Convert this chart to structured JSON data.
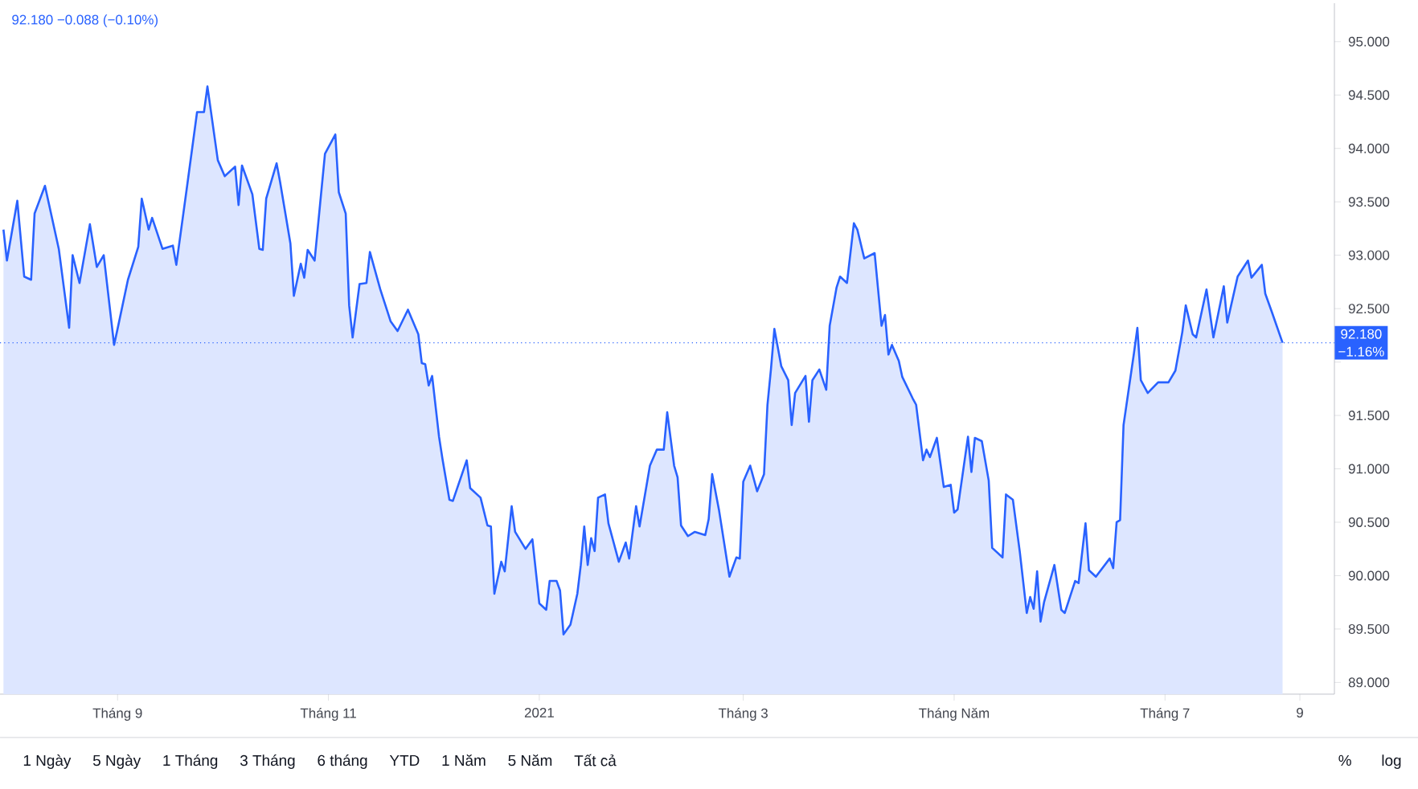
{
  "chart_data": {
    "type": "area",
    "x": [
      "2020-07-30",
      "2020-07-31",
      "2020-08-03",
      "2020-08-05",
      "2020-08-07",
      "2020-08-08",
      "2020-08-11",
      "2020-08-15",
      "2020-08-18",
      "2020-08-19",
      "2020-08-21",
      "2020-08-24",
      "2020-08-26",
      "2020-08-28",
      "2020-08-31",
      "2020-09-01",
      "2020-09-04",
      "2020-09-07",
      "2020-09-08",
      "2020-09-10",
      "2020-09-11",
      "2020-09-14",
      "2020-09-17",
      "2020-09-18",
      "2020-09-21",
      "2020-09-24",
      "2020-09-26",
      "2020-09-27",
      "2020-09-30",
      "2020-10-02",
      "2020-10-05",
      "2020-10-06",
      "2020-10-07",
      "2020-10-10",
      "2020-10-12",
      "2020-10-13",
      "2020-10-14",
      "2020-10-17",
      "2020-10-18",
      "2020-10-21",
      "2020-10-22",
      "2020-10-24",
      "2020-10-25",
      "2020-10-26",
      "2020-10-28",
      "2020-10-31",
      "2020-11-03",
      "2020-11-04",
      "2020-11-06",
      "2020-11-07",
      "2020-11-08",
      "2020-11-10",
      "2020-11-12",
      "2020-11-13",
      "2020-11-16",
      "2020-11-19",
      "2020-11-21",
      "2020-11-24",
      "2020-11-27",
      "2020-11-28",
      "2020-11-29",
      "2020-11-30",
      "2020-12-01",
      "2020-12-03",
      "2020-12-04",
      "2020-12-06",
      "2020-12-07",
      "2020-12-11",
      "2020-12-12",
      "2020-12-15",
      "2020-12-17",
      "2020-12-18",
      "2020-12-19",
      "2020-12-21",
      "2020-12-22",
      "2020-12-24",
      "2020-12-25",
      "2020-12-28",
      "2020-12-30",
      "2021-01-01",
      "2021-01-03",
      "2021-01-04",
      "2021-01-06",
      "2021-01-07",
      "2021-01-08",
      "2021-01-10",
      "2021-01-12",
      "2021-01-13",
      "2021-01-14",
      "2021-01-15",
      "2021-01-16",
      "2021-01-17",
      "2021-01-18",
      "2021-01-20",
      "2021-01-21",
      "2021-01-24",
      "2021-01-26",
      "2021-01-27",
      "2021-01-29",
      "2021-01-30",
      "2021-02-02",
      "2021-02-04",
      "2021-02-06",
      "2021-02-07",
      "2021-02-09",
      "2021-02-10",
      "2021-02-11",
      "2021-02-13",
      "2021-02-15",
      "2021-02-18",
      "2021-02-19",
      "2021-02-20",
      "2021-02-22",
      "2021-02-25",
      "2021-02-27",
      "2021-02-28",
      "2021-03-01",
      "2021-03-03",
      "2021-03-05",
      "2021-03-07",
      "2021-03-08",
      "2021-03-09",
      "2021-03-10",
      "2021-03-12",
      "2021-03-14",
      "2021-03-15",
      "2021-03-16",
      "2021-03-19",
      "2021-03-20",
      "2021-03-21",
      "2021-03-23",
      "2021-03-25",
      "2021-03-26",
      "2021-03-28",
      "2021-03-29",
      "2021-03-31",
      "2021-04-02",
      "2021-04-03",
      "2021-04-05",
      "2021-04-08",
      "2021-04-10",
      "2021-04-11",
      "2021-04-12",
      "2021-04-13",
      "2021-04-15",
      "2021-04-16",
      "2021-04-19",
      "2021-04-20",
      "2021-04-22",
      "2021-04-23",
      "2021-04-24",
      "2021-04-26",
      "2021-04-28",
      "2021-04-30",
      "2021-05-01",
      "2021-05-02",
      "2021-05-05",
      "2021-05-06",
      "2021-05-07",
      "2021-05-09",
      "2021-05-11",
      "2021-05-12",
      "2021-05-15",
      "2021-05-16",
      "2021-05-18",
      "2021-05-20",
      "2021-05-22",
      "2021-05-23",
      "2021-05-24",
      "2021-05-25",
      "2021-05-26",
      "2021-05-27",
      "2021-05-30",
      "2021-06-01",
      "2021-06-02",
      "2021-06-05",
      "2021-06-06",
      "2021-06-08",
      "2021-06-09",
      "2021-06-11",
      "2021-06-15",
      "2021-06-16",
      "2021-06-17",
      "2021-06-18",
      "2021-06-19",
      "2021-06-22",
      "2021-06-23",
      "2021-06-24",
      "2021-06-26",
      "2021-06-29",
      "2021-07-02",
      "2021-07-04",
      "2021-07-06",
      "2021-07-07",
      "2021-07-09",
      "2021-07-10",
      "2021-07-13",
      "2021-07-15",
      "2021-07-18",
      "2021-07-19",
      "2021-07-22",
      "2021-07-25",
      "2021-07-26",
      "2021-07-29",
      "2021-07-30",
      "2021-08-01",
      "2021-08-04"
    ],
    "series": [
      {
        "color": "#2962ff",
        "values": [
          93.24,
          92.95,
          93.51,
          92.8,
          92.77,
          93.39,
          93.65,
          93.06,
          92.32,
          93.0,
          92.74,
          93.29,
          92.89,
          93.0,
          92.16,
          92.31,
          92.77,
          93.08,
          93.53,
          93.24,
          93.35,
          93.06,
          93.09,
          92.91,
          93.62,
          94.34,
          94.34,
          94.58,
          93.89,
          93.74,
          93.83,
          93.47,
          93.84,
          93.57,
          93.06,
          93.05,
          93.53,
          93.86,
          93.69,
          93.11,
          92.62,
          92.92,
          92.79,
          93.05,
          92.95,
          93.95,
          94.13,
          93.59,
          93.39,
          92.53,
          92.23,
          92.73,
          92.74,
          93.03,
          92.68,
          92.38,
          92.29,
          92.49,
          92.26,
          91.99,
          91.98,
          91.78,
          91.87,
          91.3,
          91.09,
          90.71,
          90.7,
          91.08,
          90.82,
          90.73,
          90.47,
          90.46,
          89.83,
          90.13,
          90.04,
          90.65,
          90.41,
          90.25,
          90.34,
          89.74,
          89.68,
          89.95,
          89.95,
          89.86,
          89.45,
          89.54,
          89.83,
          90.1,
          90.46,
          90.1,
          90.35,
          90.23,
          90.73,
          90.76,
          90.49,
          90.13,
          90.31,
          90.16,
          90.65,
          90.46,
          91.03,
          91.18,
          91.18,
          91.53,
          91.03,
          90.92,
          90.47,
          90.37,
          90.41,
          90.38,
          90.53,
          90.95,
          90.61,
          89.99,
          90.17,
          90.16,
          90.88,
          91.03,
          90.79,
          90.95,
          91.6,
          91.93,
          92.31,
          91.96,
          91.83,
          91.41,
          91.71,
          91.87,
          91.44,
          91.83,
          91.93,
          91.74,
          92.34,
          92.7,
          92.8,
          92.74,
          93.3,
          93.24,
          92.97,
          93.02,
          92.34,
          92.44,
          92.07,
          92.16,
          92.01,
          91.86,
          91.66,
          91.6,
          91.08,
          91.18,
          91.11,
          91.29,
          90.83,
          90.85,
          90.59,
          90.62,
          91.3,
          90.97,
          91.29,
          91.26,
          90.89,
          90.26,
          90.17,
          90.76,
          90.71,
          90.22,
          89.65,
          89.8,
          89.69,
          90.04,
          89.57,
          89.75,
          90.1,
          89.68,
          89.65,
          89.95,
          89.93,
          90.49,
          90.05,
          89.99,
          90.16,
          90.07,
          90.5,
          90.52,
          91.41,
          92.08,
          92.32,
          91.83,
          91.71,
          91.81,
          91.81,
          91.92,
          92.28,
          92.53,
          92.26,
          92.23,
          92.68,
          92.23,
          92.71,
          92.37,
          92.8,
          92.95,
          92.79,
          92.91,
          92.64,
          92.46,
          92.18
        ]
      }
    ],
    "xlim": [
      "2020-07-29",
      "2021-08-19"
    ],
    "xticks": [
      {
        "value": "2020-09-01",
        "label": "Tháng 9"
      },
      {
        "value": "2020-11-01",
        "label": "Tháng 11"
      },
      {
        "value": "2021-01-01",
        "label": "2021"
      },
      {
        "value": "2021-03-01",
        "label": "Tháng 3"
      },
      {
        "value": "2021-05-01",
        "label": "Tháng Năm"
      },
      {
        "value": "2021-07-01",
        "label": "Tháng 7"
      },
      {
        "value": "2021-08-09",
        "label": "9"
      }
    ],
    "ylim": [
      88.89,
      95.36
    ],
    "yticks": [
      {
        "value": 89,
        "label": "89.000"
      },
      {
        "value": 89.5,
        "label": "89.500"
      },
      {
        "value": 90,
        "label": "90.000"
      },
      {
        "value": 90.5,
        "label": "90.500"
      },
      {
        "value": 91,
        "label": "91.000"
      },
      {
        "value": 91.5,
        "label": "91.500"
      },
      {
        "value": 92,
        "label": null
      },
      {
        "value": 92.5,
        "label": "92.500"
      },
      {
        "value": 93,
        "label": "93.000"
      },
      {
        "value": 93.5,
        "label": "93.500"
      },
      {
        "value": 94,
        "label": "94.000"
      },
      {
        "value": 94.5,
        "label": "94.500"
      },
      {
        "value": 95,
        "label": "95.000"
      }
    ],
    "ref_lines": [
      {
        "axis": "y",
        "value": 92.18,
        "label": "92.180",
        "color": "#2962ff",
        "line_style": "dotted"
      }
    ],
    "annotations": [
      "92.180  −0.088 (−0.10%)",
      "−1.16%",
      "1 Ngày",
      "5 Ngày",
      "1 Tháng",
      "3 Tháng",
      "6 tháng",
      "YTD",
      "1 Năm",
      "5 Năm",
      "Tất cả",
      "%",
      "log"
    ],
    "grid": false,
    "marker": "none",
    "line_style": "solid"
  }
}
